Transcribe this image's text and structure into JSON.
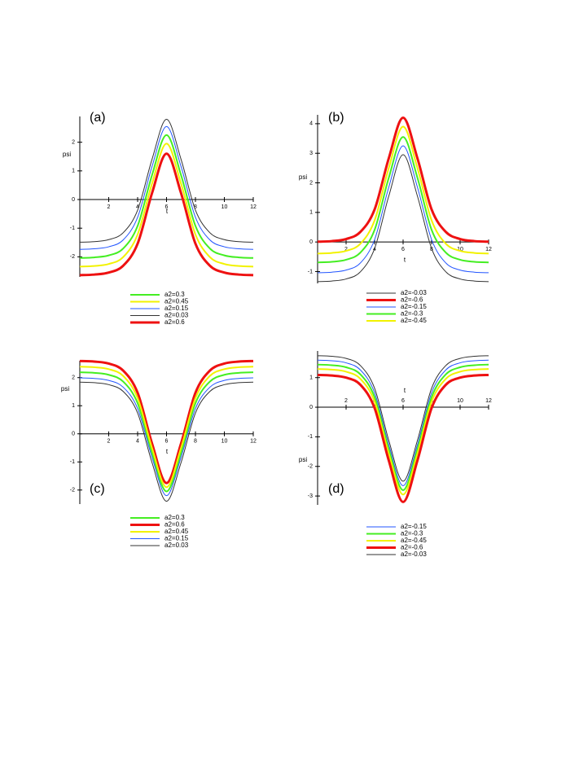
{
  "chart_data": [
    {
      "type": "line",
      "label": "(a)",
      "xlabel": "t",
      "ylabel": "psi",
      "x": [
        0,
        1,
        2,
        3,
        4,
        5,
        6,
        7,
        8,
        9,
        10,
        11,
        12
      ],
      "xlim": [
        0,
        12
      ],
      "xticks": [
        2,
        4,
        6,
        8,
        10,
        12
      ],
      "ylim": [
        -2.7,
        2.9
      ],
      "yticks": [
        -2,
        -1,
        0,
        1,
        2
      ],
      "series": [
        {
          "name": "a2=0.3",
          "color": "#44ee22",
          "line_width": 2,
          "values": [
            -2.04,
            -2.02,
            -1.95,
            -1.71,
            -0.92,
            0.86,
            2.25,
            0.86,
            -0.92,
            -1.71,
            -1.95,
            -2.02,
            -2.04
          ]
        },
        {
          "name": "a2=0.45",
          "color": "#f2f200",
          "line_width": 2,
          "values": [
            -2.34,
            -2.32,
            -2.25,
            -2.01,
            -1.22,
            0.56,
            1.95,
            0.56,
            -1.22,
            -2.01,
            -2.25,
            -2.32,
            -2.34
          ]
        },
        {
          "name": "a2=0.15",
          "color": "#2255ff",
          "line_width": 1,
          "values": [
            -1.74,
            -1.72,
            -1.65,
            -1.41,
            -0.62,
            1.16,
            2.55,
            1.16,
            -0.62,
            -1.41,
            -1.65,
            -1.72,
            -1.74
          ]
        },
        {
          "name": "a2=0.03",
          "color": "#333333",
          "line_width": 1,
          "values": [
            -1.49,
            -1.47,
            -1.4,
            -1.16,
            -0.37,
            1.41,
            2.8,
            1.41,
            -0.37,
            -1.16,
            -1.4,
            -1.47,
            -1.49
          ]
        },
        {
          "name": "a2=0.6",
          "color": "#ee1111",
          "line_width": 3,
          "values": [
            -2.64,
            -2.62,
            -2.55,
            -2.31,
            -1.54,
            0.23,
            1.6,
            0.23,
            -1.54,
            -2.31,
            -2.55,
            -2.62,
            -2.64
          ]
        }
      ]
    },
    {
      "type": "line",
      "label": "(b)",
      "xlabel": "t",
      "ylabel": "psi",
      "x": [
        0,
        1,
        2,
        3,
        4,
        5,
        6,
        7,
        8,
        9,
        10,
        11,
        12
      ],
      "xlim": [
        0,
        12
      ],
      "xticks": [
        2,
        4,
        6,
        8,
        10,
        12
      ],
      "ylim": [
        -1.4,
        4.3
      ],
      "yticks": [
        -1,
        0,
        1,
        2,
        3,
        4
      ],
      "series": [
        {
          "name": "a2=-0.03",
          "color": "#333333",
          "line_width": 1,
          "values": [
            -1.34,
            -1.32,
            -1.25,
            -1.01,
            -0.22,
            1.56,
            2.95,
            1.56,
            -0.22,
            -1.01,
            -1.25,
            -1.32,
            -1.34
          ]
        },
        {
          "name": "a2=-0.6",
          "color": "#ee1111",
          "line_width": 3,
          "values": [
            0.01,
            0.03,
            0.1,
            0.34,
            1.1,
            2.84,
            4.2,
            2.84,
            1.1,
            0.34,
            0.1,
            0.03,
            0.01
          ]
        },
        {
          "name": "a2=-0.15",
          "color": "#2255ff",
          "line_width": 1,
          "values": [
            -1.04,
            -1.02,
            -0.95,
            -0.71,
            0.08,
            1.86,
            3.25,
            1.86,
            0.08,
            -0.71,
            -0.95,
            -1.02,
            -1.04
          ]
        },
        {
          "name": "a2=-0.3",
          "color": "#44ee22",
          "line_width": 2,
          "values": [
            -0.69,
            -0.67,
            -0.6,
            -0.36,
            0.41,
            2.18,
            3.55,
            2.18,
            0.41,
            -0.36,
            -0.6,
            -0.67,
            -0.69
          ]
        },
        {
          "name": "a2=-0.45",
          "color": "#f2f200",
          "line_width": 2,
          "values": [
            -0.39,
            -0.37,
            -0.3,
            -0.06,
            0.73,
            2.51,
            3.9,
            2.51,
            0.73,
            -0.06,
            -0.3,
            -0.37,
            -0.39
          ]
        }
      ]
    },
    {
      "type": "line",
      "label": "(c)",
      "xlabel": "t",
      "ylabel": "psi",
      "x": [
        0,
        1,
        2,
        3,
        4,
        5,
        6,
        7,
        8,
        9,
        10,
        11,
        12
      ],
      "xlim": [
        0,
        12
      ],
      "xticks": [
        2,
        4,
        6,
        8,
        10,
        12
      ],
      "ylim": [
        -2.5,
        2.6
      ],
      "yticks": [
        -2,
        -1,
        0,
        1,
        2
      ],
      "series": [
        {
          "name": "a2=0.3",
          "color": "#44ee22",
          "line_width": 2,
          "values": [
            2.19,
            2.17,
            2.1,
            1.86,
            1.09,
            -0.68,
            -2.05,
            -0.68,
            1.09,
            1.86,
            2.1,
            2.17,
            2.19
          ]
        },
        {
          "name": "a2=0.6",
          "color": "#ee1111",
          "line_width": 3,
          "values": [
            2.59,
            2.57,
            2.5,
            2.25,
            1.46,
            -0.35,
            -1.75,
            -0.35,
            1.46,
            2.25,
            2.5,
            2.57,
            2.59
          ]
        },
        {
          "name": "a2=0.45",
          "color": "#f2f200",
          "line_width": 2,
          "values": [
            2.39,
            2.37,
            2.3,
            2.06,
            1.27,
            -0.51,
            -1.9,
            -0.51,
            1.27,
            2.06,
            2.3,
            2.37,
            2.39
          ]
        },
        {
          "name": "a2=0.15",
          "color": "#2255ff",
          "line_width": 1,
          "values": [
            1.99,
            1.97,
            1.9,
            1.66,
            0.9,
            -0.84,
            -2.2,
            -0.84,
            0.9,
            1.66,
            1.9,
            1.97,
            1.99
          ]
        },
        {
          "name": "a2=0.03",
          "color": "#333333",
          "line_width": 1,
          "values": [
            1.84,
            1.82,
            1.75,
            1.51,
            0.74,
            -1.03,
            -2.4,
            -1.03,
            0.74,
            1.51,
            1.75,
            1.82,
            1.84
          ]
        }
      ]
    },
    {
      "type": "line",
      "label": "(d)",
      "xlabel": "t",
      "ylabel": "psi",
      "x": [
        0,
        1,
        2,
        3,
        4,
        5,
        6,
        7,
        8,
        9,
        10,
        11,
        12
      ],
      "xlim": [
        0,
        12
      ],
      "xticks": [
        2,
        4,
        6,
        8,
        10,
        12
      ],
      "ylim": [
        -3.3,
        1.9
      ],
      "yticks": [
        -3,
        -2,
        -1,
        0,
        1
      ],
      "series": [
        {
          "name": "a2=-0.15",
          "color": "#2255ff",
          "line_width": 1,
          "values": [
            1.59,
            1.57,
            1.5,
            1.26,
            0.49,
            -1.28,
            -2.65,
            -1.28,
            0.49,
            1.26,
            1.5,
            1.57,
            1.59
          ]
        },
        {
          "name": "a2=-0.3",
          "color": "#44ee22",
          "line_width": 2,
          "values": [
            1.44,
            1.42,
            1.35,
            1.11,
            0.34,
            -1.43,
            -2.8,
            -1.43,
            0.34,
            1.11,
            1.35,
            1.42,
            1.44
          ]
        },
        {
          "name": "a2=-0.45",
          "color": "#f2f200",
          "line_width": 2,
          "values": [
            1.29,
            1.27,
            1.2,
            0.96,
            0.19,
            -1.58,
            -2.95,
            -1.58,
            0.19,
            0.96,
            1.2,
            1.27,
            1.29
          ]
        },
        {
          "name": "a2=-0.6",
          "color": "#ee1111",
          "line_width": 3,
          "values": [
            1.09,
            1.07,
            1.0,
            0.76,
            -0.03,
            -1.81,
            -3.2,
            -1.81,
            -0.03,
            0.76,
            1.0,
            1.07,
            1.09
          ]
        },
        {
          "name": "a2=-0.03",
          "color": "#333333",
          "line_width": 1,
          "values": [
            1.74,
            1.72,
            1.65,
            1.41,
            0.64,
            -1.13,
            -2.5,
            -1.13,
            0.64,
            1.41,
            1.65,
            1.72,
            1.74
          ]
        }
      ]
    }
  ]
}
